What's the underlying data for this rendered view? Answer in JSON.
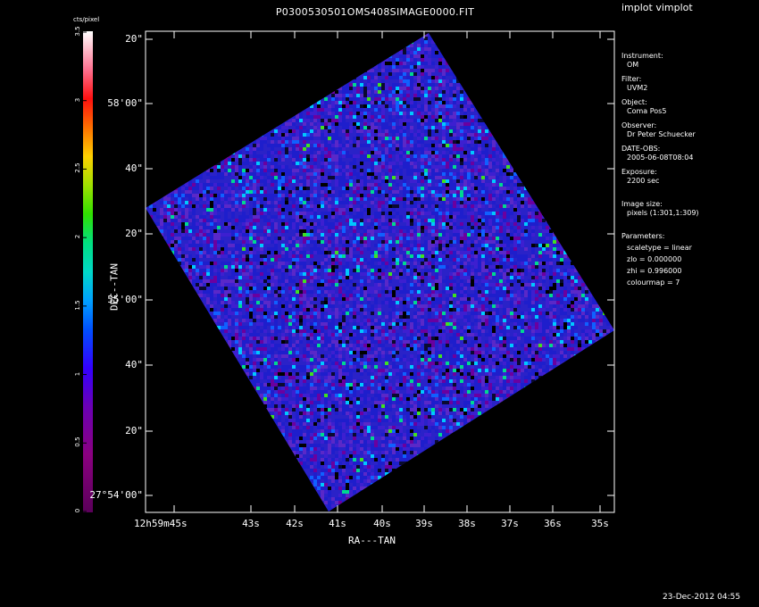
{
  "app": {
    "title": "implot vimplot"
  },
  "plot": {
    "title": "P0300530501OMS408SIMAGE0000.FIT",
    "xlabel": "RA---TAN",
    "ylabel": "DEC--TAN",
    "x_ticks": [
      "12h59m45s",
      "43s",
      "42s",
      "41s",
      "40s",
      "39s",
      "38s",
      "37s",
      "36s",
      "35s"
    ],
    "y_ticks": [
      "27°54'00\"",
      "20\"",
      "40\"",
      "55'00\"",
      "20\"",
      "40\"",
      "58'00\"",
      "20\""
    ],
    "colorbar": {
      "label": "cts/pixel",
      "ticks": [
        "0",
        "0.5",
        "1",
        "1.5",
        "2",
        "2.5",
        "3",
        "3.5"
      ]
    }
  },
  "info": {
    "instrument_label": "Instrument:",
    "instrument_value": "OM",
    "filter_label": "Filter:",
    "filter_value": "UVM2",
    "object_label": "Object:",
    "object_value": "Coma Pos5",
    "observer_label": "Observer:",
    "observer_value": "Dr Peter Schuecker",
    "date_label": "DATE-OBS:",
    "date_value": "2005-06-08T08:04",
    "exposure_label": "Exposure:",
    "exposure_value": "2200 sec",
    "image_size_label": "Image size:",
    "image_size_value": "pixels (1:301,1:309)",
    "parameters_label": "Parameters:",
    "scaletype": "scaletype = linear",
    "zlo": "zlo = 0.000000",
    "zhi": "zhi = 0.996000",
    "colourmap": "colourmap =    7"
  },
  "footer": {
    "datestamp": "23-Dec-2012 04:55"
  },
  "colors": {
    "background": "#000000",
    "frame": "#ffffff",
    "pixel_low": "#1e1ecc",
    "pixel_mid": "#5a28c8",
    "pixel_hi": "#00c8ff"
  }
}
